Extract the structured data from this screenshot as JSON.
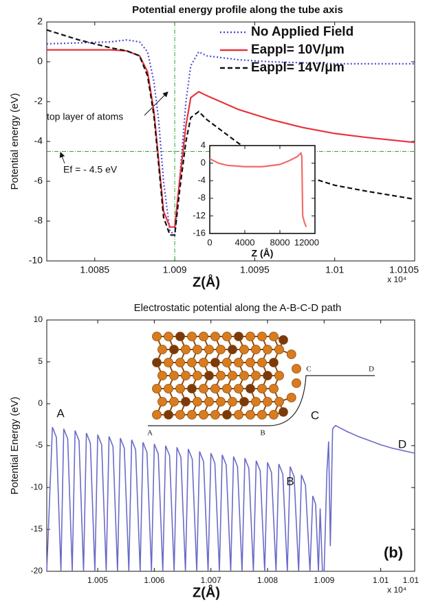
{
  "chart_data": [
    {
      "type": "line",
      "title": "Potential energy profile along the tube axis",
      "xlabel": "Z(Å)",
      "ylabel": "Potential energy (eV)",
      "x_multiplier": "x 10⁴",
      "xlim": [
        1.0082,
        1.0105
      ],
      "xticks": [
        1.0085,
        1.009,
        1.0095,
        1.01,
        1.0105
      ],
      "ylim": [
        -10,
        2
      ],
      "yticks": [
        -10,
        -8,
        -6,
        -4,
        -2,
        0,
        2
      ],
      "legend": "upper right",
      "x": [
        1.0082,
        1.0084,
        1.0086,
        1.0087,
        1.00878,
        1.00883,
        1.00887,
        1.0089,
        1.00893,
        1.00897,
        1.009,
        1.00903,
        1.00907,
        1.0091,
        1.00915,
        1.0092,
        1.0094,
        1.0096,
        1.0098,
        1.01,
        1.0102,
        1.0105
      ],
      "series": [
        {
          "name": "No Applied Field",
          "color": "#4a4ad8",
          "style": "dotted",
          "values": [
            0.9,
            0.95,
            1.0,
            1.1,
            1.0,
            0.5,
            -1,
            -3,
            -6,
            -8.5,
            -8.7,
            -6,
            -2,
            -0.2,
            0.5,
            0.3,
            0.1,
            0,
            -0.05,
            -0.1,
            -0.1,
            -0.1
          ]
        },
        {
          "name": "Eappl= 10V/μm",
          "color": "#e8323c",
          "style": "solid",
          "values": [
            0.6,
            0.6,
            0.6,
            0.55,
            0.3,
            -0.5,
            -2.5,
            -5,
            -7.5,
            -8.3,
            -8.3,
            -6,
            -3.2,
            -1.8,
            -1.5,
            -1.7,
            -2.4,
            -2.9,
            -3.3,
            -3.6,
            -3.8,
            -4.05
          ]
        },
        {
          "name": "Eappl= 14V/μm",
          "color": "#111111",
          "style": "dashed",
          "values": [
            1.6,
            1.1,
            0.7,
            0.55,
            0.3,
            -0.7,
            -2.7,
            -5.2,
            -7.8,
            -8.7,
            -8.7,
            -6.5,
            -4,
            -2.8,
            -2.5,
            -2.9,
            -4.1,
            -5,
            -5.7,
            -6.2,
            -6.5,
            -6.9
          ]
        }
      ],
      "reference_lines": {
        "x": 1.009,
        "y": -4.5,
        "color": "#2aa52a"
      },
      "annotations": [
        "top layer of atoms",
        "Ef = - 4.5 eV"
      ]
    },
    {
      "type": "line",
      "xlabel": "Z (Å)",
      "xlim": [
        0,
        12000
      ],
      "xticks": [
        0,
        4000,
        8000,
        12000
      ],
      "ylim": [
        -16,
        4
      ],
      "yticks": [
        -16,
        -12,
        -8,
        -4,
        0,
        4
      ],
      "x": [
        0,
        1000,
        2000,
        4000,
        6000,
        8000,
        9000,
        10000,
        10400,
        10500,
        10600,
        10800,
        11000
      ],
      "series": [
        {
          "color": "#f26a6a",
          "style": "solid",
          "values": [
            1,
            0,
            -0.5,
            -0.8,
            -0.8,
            -0.3,
            0.5,
            1.5,
            2.3,
            1.5,
            -12,
            -13.5,
            -14.5
          ]
        }
      ]
    },
    {
      "type": "line",
      "title": "Electrostatic potential along the A-B-C-D path",
      "xlabel": "Z(Å)",
      "ylabel": "Potential Energy (eV)",
      "x_multiplier": "x 10⁴",
      "xlim": [
        1.0041,
        1.0106
      ],
      "xticks": [
        1.005,
        1.006,
        1.007,
        1.008,
        1.009,
        1.01,
        {
          "value": 1.0106,
          "label": "1.01"
        }
      ],
      "ylim": [
        -20,
        10
      ],
      "yticks": [
        -20,
        -15,
        -10,
        -5,
        0,
        5,
        10
      ],
      "x": [
        1.0041,
        1.0042,
        1.00427,
        1.00435,
        1.0044,
        1.00447,
        1.00455,
        1.0046,
        1.00467,
        1.00475,
        1.0048,
        1.00487,
        1.00495,
        1.005,
        1.00507,
        1.00515,
        1.0052,
        1.00527,
        1.00535,
        1.0054,
        1.00547,
        1.00555,
        1.0056,
        1.00567,
        1.00575,
        1.0058,
        1.00587,
        1.00595,
        1.006,
        1.00607,
        1.00615,
        1.0062,
        1.00627,
        1.00635,
        1.0064,
        1.00647,
        1.00655,
        1.0066,
        1.00667,
        1.00675,
        1.0068,
        1.00687,
        1.00695,
        1.007,
        1.00707,
        1.00715,
        1.0072,
        1.00727,
        1.00735,
        1.0074,
        1.00747,
        1.00755,
        1.0076,
        1.00767,
        1.00775,
        1.0078,
        1.00787,
        1.00795,
        1.008,
        1.00807,
        1.00815,
        1.0082,
        1.00827,
        1.00835,
        1.0084,
        1.00847,
        1.00855,
        1.0086,
        1.00867,
        1.00875,
        1.0088,
        1.00885,
        1.0089,
        1.00893,
        1.00897,
        1.009,
        1.00905,
        1.00908,
        1.00911,
        1.00915,
        1.0092,
        1.0094,
        1.0096,
        1.0098,
        1.01,
        1.0102,
        1.0104,
        1.0106
      ],
      "series": [
        {
          "color": "#6a6ac8",
          "style": "solid",
          "values": [
            -20,
            -2.8,
            -4,
            -20,
            -3,
            -4.2,
            -20,
            -3.2,
            -4.4,
            -20,
            -3.5,
            -4.7,
            -20,
            -3.7,
            -4.9,
            -20,
            -3.9,
            -5.1,
            -20,
            -4.1,
            -5.3,
            -20,
            -4.3,
            -5.5,
            -20,
            -4.6,
            -5.8,
            -20,
            -4.8,
            -6,
            -20,
            -5,
            -6.2,
            -20,
            -5.2,
            -6.4,
            -20,
            -5.4,
            -6.6,
            -20,
            -5.7,
            -6.9,
            -20,
            -5.9,
            -7.1,
            -20,
            -6.1,
            -7.3,
            -20,
            -6.3,
            -7.5,
            -20,
            -6.5,
            -7.7,
            -20,
            -6.8,
            -8,
            -20,
            -7,
            -8.2,
            -20,
            -7.2,
            -8.4,
            -20,
            -7.5,
            -8.7,
            -20,
            -8.5,
            -9.7,
            -20,
            -11,
            -12,
            -20,
            -12.5,
            -20,
            -20,
            -8,
            -4.5,
            -17,
            -3,
            -2.6,
            -3.3,
            -3.9,
            -4.4,
            -4.9,
            -5.3,
            -5.6,
            -5.9
          ]
        }
      ],
      "annotations": [
        "A",
        "B",
        "C",
        "D",
        "(b)"
      ],
      "diagram_labels": [
        "A",
        "B",
        "C",
        "D"
      ]
    }
  ]
}
